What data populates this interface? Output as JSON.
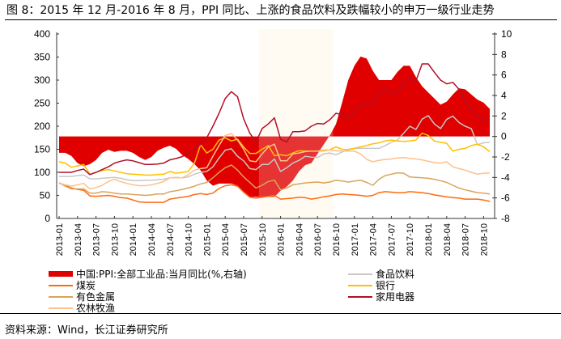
{
  "title": "图 8：2015 年 12 月-2016 年 8 月，PPI 同比、上涨的食品饮料及跌幅较小的申万一级行业走势",
  "source": "资料来源：Wind，长江证券研究所",
  "chart_data": {
    "type": "line",
    "title": "",
    "x_start": "2013-01",
    "x_tick_labels": [
      "2013-01",
      "2013-04",
      "2013-07",
      "2013-10",
      "2014-01",
      "2014-04",
      "2014-07",
      "2014-10",
      "2015-01",
      "2015-04",
      "2015-07",
      "2015-10",
      "2016-01",
      "2016-04",
      "2016-07",
      "2016-10",
      "2017-01",
      "2017-04",
      "2017-07",
      "2017-10",
      "2018-01",
      "2018-04",
      "2018-07",
      "2018-10"
    ],
    "left_axis": {
      "ylim": [
        0,
        400
      ],
      "ticks": [
        0,
        50,
        100,
        150,
        200,
        250,
        300,
        350,
        400
      ]
    },
    "right_axis": {
      "ylim": [
        -8,
        10
      ],
      "ticks": [
        -8,
        -6,
        -4,
        -2,
        0,
        2,
        4,
        6,
        8,
        10
      ]
    },
    "highlight": {
      "start": "2015-10",
      "end": "2016-09",
      "color": "#fffaf0"
    },
    "grid": false,
    "legend_placement": "bottom",
    "series": [
      {
        "name": "中国:PPI:全部工业品:当月同比(%,右轴)",
        "axis": "right",
        "kind": "area",
        "color": "#e00000",
        "values": [
          -1.6,
          -1.6,
          -1.9,
          -2.6,
          -2.9,
          -2.7,
          -2.3,
          -1.6,
          -1.3,
          -1.5,
          -1.4,
          -1.4,
          -1.6,
          -2.0,
          -2.3,
          -2.0,
          -1.4,
          -1.1,
          -0.9,
          -1.2,
          -1.8,
          -2.2,
          -2.7,
          -3.3,
          -4.3,
          -4.8,
          -4.6,
          -4.6,
          -4.6,
          -4.8,
          -5.4,
          -5.9,
          -5.9,
          -5.9,
          -5.9,
          -5.9,
          -5.3,
          -4.9,
          -4.3,
          -3.4,
          -2.8,
          -2.6,
          -1.7,
          -0.8,
          0.1,
          1.2,
          3.3,
          5.5,
          6.9,
          7.8,
          7.6,
          6.4,
          5.5,
          5.5,
          5.5,
          6.3,
          6.9,
          6.9,
          5.8,
          4.9,
          4.3,
          3.7,
          3.1,
          3.4,
          4.1,
          4.7,
          4.6,
          4.1,
          3.6,
          3.3,
          2.7
        ]
      },
      {
        "name": "食品饮料",
        "axis": "left",
        "kind": "line",
        "color": "#c8c8c8",
        "values": [
          91,
          91,
          91,
          93,
          94,
          86,
          86,
          87,
          88,
          89,
          87,
          84,
          82,
          82,
          83,
          83,
          84,
          85,
          88,
          89,
          88,
          90,
          96,
          100,
          102,
          112,
          131,
          148,
          151,
          135,
          125,
          108,
          106,
          117,
          117,
          129,
          102,
          110,
          120,
          126,
          135,
          133,
          132,
          140,
          142,
          138,
          144,
          150,
          152,
          152,
          152,
          152,
          152,
          158,
          165,
          170,
          185,
          200,
          193,
          215,
          223,
          205,
          195,
          215,
          222,
          208,
          200,
          195,
          160,
          164,
          165
        ]
      },
      {
        "name": "煤炭",
        "axis": "left",
        "kind": "line",
        "color": "#ff6a10",
        "values": [
          77,
          72,
          66,
          63,
          61,
          49,
          48,
          49,
          50,
          48,
          45,
          44,
          40,
          36,
          35,
          35,
          35,
          35,
          42,
          44,
          46,
          48,
          52,
          54,
          52,
          55,
          65,
          71,
          73,
          70,
          57,
          46,
          44,
          46,
          48,
          50,
          42,
          43,
          44,
          46,
          45,
          42,
          44,
          47,
          49,
          52,
          53,
          52,
          51,
          50,
          48,
          50,
          56,
          58,
          57,
          56,
          56,
          58,
          57,
          56,
          54,
          51,
          49,
          47,
          45,
          44,
          42,
          42,
          42,
          40,
          37
        ]
      },
      {
        "name": "银行",
        "axis": "left",
        "kind": "line",
        "color": "#ffc000",
        "values": [
          123,
          120,
          111,
          114,
          117,
          96,
          100,
          104,
          106,
          103,
          100,
          97,
          96,
          95,
          94,
          94,
          95,
          96,
          102,
          98,
          100,
          102,
          120,
          160,
          142,
          150,
          170,
          175,
          168,
          172,
          155,
          141,
          141,
          150,
          158,
          136,
          138,
          136,
          142,
          147,
          146,
          146,
          146,
          148,
          149,
          155,
          150,
          149,
          152,
          155,
          158,
          162,
          164,
          168,
          170,
          168,
          167,
          168,
          170,
          185,
          180,
          168,
          165,
          163,
          146,
          150,
          152,
          158,
          161,
          155,
          145
        ]
      },
      {
        "name": "有色金属",
        "axis": "left",
        "kind": "line",
        "color": "#d9a45a",
        "values": [
          77,
          70,
          64,
          64,
          64,
          55,
          55,
          58,
          57,
          55,
          53,
          53,
          52,
          51,
          50,
          51,
          53,
          53,
          58,
          60,
          63,
          66,
          70,
          75,
          78,
          88,
          100,
          110,
          116,
          105,
          90,
          78,
          66,
          72,
          80,
          83,
          62,
          66,
          73,
          75,
          77,
          78,
          79,
          77,
          79,
          83,
          81,
          79,
          81,
          83,
          78,
          72,
          85,
          93,
          96,
          99,
          98,
          90,
          89,
          88,
          87,
          85,
          82,
          78,
          72,
          66,
          62,
          59,
          56,
          55,
          53
        ]
      },
      {
        "name": "家用电器",
        "axis": "left",
        "kind": "line",
        "color": "#b0102a",
        "values": [
          100,
          100,
          100,
          104,
          107,
          95,
          100,
          106,
          112,
          120,
          124,
          127,
          125,
          121,
          117,
          117,
          118,
          120,
          127,
          130,
          134,
          142,
          152,
          160,
          175,
          200,
          228,
          260,
          275,
          264,
          216,
          185,
          166,
          195,
          205,
          218,
          172,
          166,
          188,
          188,
          190,
          200,
          206,
          205,
          214,
          228,
          225,
          218,
          232,
          246,
          247,
          249,
          270,
          281,
          270,
          272,
          295,
          304,
          298,
          335,
          335,
          317,
          300,
          292,
          295,
          280,
          255,
          235,
          222,
          216,
          211
        ]
      },
      {
        "name": "农林牧渔",
        "axis": "left",
        "kind": "line",
        "color": "#ffc08a",
        "values": [
          76,
          73,
          70,
          73,
          76,
          64,
          67,
          72,
          80,
          85,
          80,
          76,
          73,
          71,
          71,
          73,
          76,
          80,
          88,
          88,
          88,
          95,
          105,
          108,
          110,
          135,
          158,
          180,
          184,
          170,
          150,
          125,
          123,
          140,
          155,
          161,
          125,
          125,
          140,
          142,
          145,
          146,
          146,
          146,
          149,
          147,
          146,
          146,
          146,
          140,
          128,
          123,
          126,
          128,
          129,
          131,
          132,
          130,
          129,
          127,
          124,
          121,
          120,
          123,
          112,
          108,
          105,
          100,
          96,
          98,
          99
        ]
      }
    ]
  }
}
